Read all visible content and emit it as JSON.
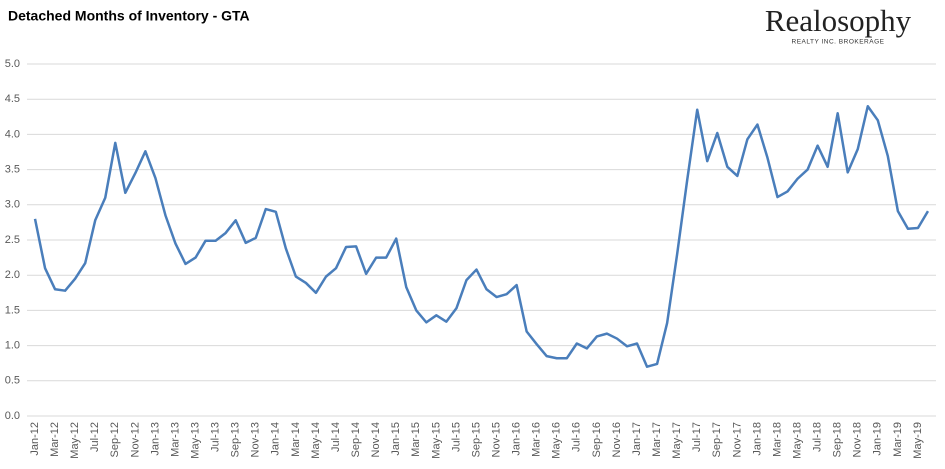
{
  "logo": {
    "name": "Realosophy",
    "tagline": "REALTY INC. BROKERAGE"
  },
  "chart_data": {
    "type": "line",
    "title": "Detached Months of Inventory - GTA",
    "categories": [
      "Jan-12",
      null,
      "Mar-12",
      null,
      "May-12",
      null,
      "Jul-12",
      null,
      "Sep-12",
      null,
      "Nov-12",
      null,
      "Jan-13",
      null,
      "Mar-13",
      null,
      "May-13",
      null,
      "Jul-13",
      null,
      "Sep-13",
      null,
      "Nov-13",
      null,
      "Jan-14",
      null,
      "Mar-14",
      null,
      "May-14",
      null,
      "Jul-14",
      null,
      "Sep-14",
      null,
      "Nov-14",
      null,
      "Jan-15",
      null,
      "Mar-15",
      null,
      "May-15",
      null,
      "Jul-15",
      null,
      "Sep-15",
      null,
      "Nov-15",
      null,
      "Jan-16",
      null,
      "Mar-16",
      null,
      "May-16",
      null,
      "Jul-16",
      null,
      "Sep-16",
      null,
      "Nov-16",
      null,
      "Jan-17",
      null,
      "Mar-17",
      null,
      "May-17",
      null,
      "Jul-17",
      null,
      "Sep-17",
      null,
      "Nov-17",
      null,
      "Jan-18",
      null,
      "Mar-18",
      null,
      "May-18",
      null,
      "Jul-18",
      null,
      "Sep-18",
      null,
      "Nov-18",
      null,
      "Jan-19",
      null,
      "Mar-19",
      null,
      "May-19",
      null
    ],
    "series": [
      {
        "name": "Detached Months of Inventory",
        "color": "#4a7ebb",
        "values": [
          2.8,
          2.1,
          1.8,
          1.78,
          1.95,
          2.17,
          2.78,
          3.1,
          3.88,
          3.17,
          3.45,
          3.76,
          3.38,
          2.85,
          2.45,
          2.16,
          2.25,
          2.49,
          2.49,
          2.6,
          2.78,
          2.46,
          2.53,
          2.94,
          2.9,
          2.38,
          1.98,
          1.89,
          1.75,
          1.98,
          2.1,
          2.4,
          2.41,
          2.02,
          2.25,
          2.25,
          2.52,
          1.83,
          1.5,
          1.33,
          1.43,
          1.34,
          1.53,
          1.93,
          2.08,
          1.8,
          1.69,
          1.73,
          1.86,
          1.2,
          1.02,
          0.85,
          0.82,
          0.82,
          1.03,
          0.96,
          1.13,
          1.17,
          1.1,
          0.99,
          1.03,
          0.7,
          0.74,
          1.32,
          2.3,
          3.35,
          4.35,
          3.62,
          4.02,
          3.54,
          3.41,
          3.93,
          4.14,
          3.67,
          3.11,
          3.19,
          3.37,
          3.5,
          3.84,
          3.54,
          4.3,
          3.46,
          3.79,
          4.4,
          4.2,
          3.69,
          2.91,
          2.66,
          2.67,
          2.91
        ]
      }
    ],
    "ylim": [
      0,
      5
    ],
    "yticks": [
      {
        "value": 0,
        "label": "0.0"
      },
      {
        "value": 0.5,
        "label": "0.5"
      },
      {
        "value": 1,
        "label": "1.0"
      },
      {
        "value": 1.5,
        "label": "1.5"
      },
      {
        "value": 2,
        "label": "2.0"
      },
      {
        "value": 2.5,
        "label": "2.5"
      },
      {
        "value": 3,
        "label": "3.0"
      },
      {
        "value": 3.5,
        "label": "3.5"
      },
      {
        "value": 4,
        "label": "4.0"
      },
      {
        "value": 4.5,
        "label": "4.5"
      },
      {
        "value": 5,
        "label": "5.0"
      }
    ],
    "grid": true
  }
}
